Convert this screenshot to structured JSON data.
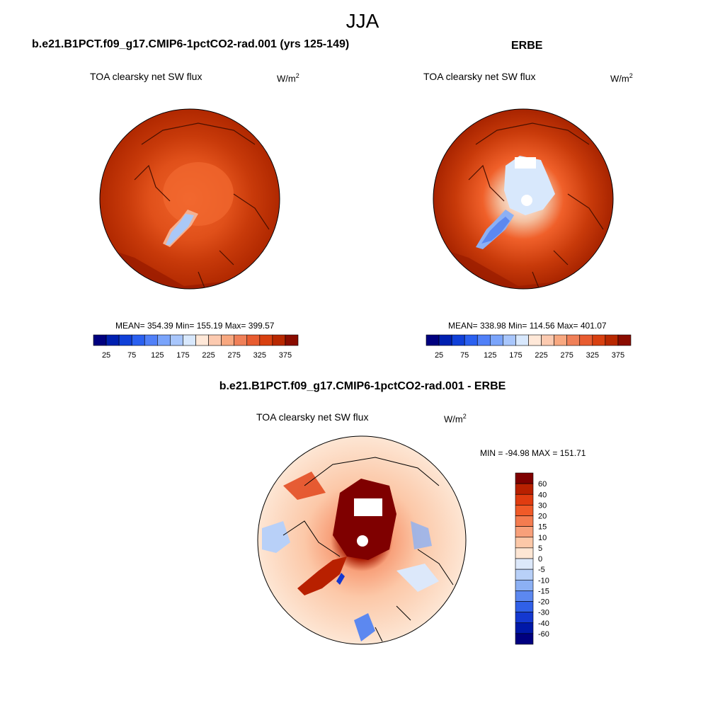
{
  "title": "JJA",
  "panels": [
    {
      "header": "b.e21.B1PCT.f09_g17.CMIP6-1pctCO2-rad.001 (yrs 125-149)",
      "subtitle": "TOA clearsky net SW flux",
      "units": "W/m",
      "units_sup": "2",
      "stats": "MEAN= 354.39  Min= 155.19  Max= 399.57"
    },
    {
      "header": "ERBE",
      "subtitle": "TOA clearsky net SW flux",
      "units": "W/m",
      "units_sup": "2",
      "stats": "MEAN= 338.98  Min= 114.56  Max= 401.07"
    },
    {
      "header": "b.e21.B1PCT.f09_g17.CMIP6-1pctCO2-rad.001 - ERBE",
      "subtitle": "TOA clearsky net SW flux",
      "units": "W/m",
      "units_sup": "2",
      "stats": "MIN = -94.98 MAX = 151.71"
    }
  ],
  "colorbar_abs": {
    "labels": [
      "25",
      "75",
      "125",
      "175",
      "225",
      "275",
      "325",
      "375"
    ],
    "colors": [
      "#00007f",
      "#0020b0",
      "#1040d8",
      "#2a60f0",
      "#5080f8",
      "#7aa4fb",
      "#a8c6fc",
      "#d8e8fd",
      "#ffe8d8",
      "#fccab0",
      "#f8a880",
      "#f08058",
      "#e85c30",
      "#d84010",
      "#b82800",
      "#8a0c00"
    ]
  },
  "colorbar_diff": {
    "labels": [
      "60",
      "40",
      "30",
      "20",
      "15",
      "10",
      "5",
      "0",
      "-5",
      "-10",
      "-15",
      "-20",
      "-30",
      "-40",
      "-60"
    ],
    "colors": [
      "#7f0000",
      "#b82000",
      "#e03c10",
      "#f05a28",
      "#f47c50",
      "#f8a07a",
      "#fcc8a8",
      "#fde6d4",
      "#dce8fa",
      "#b8d0f8",
      "#8cb0f4",
      "#5c88f0",
      "#3060e8",
      "#1438d0",
      "#0018a8",
      "#000080"
    ]
  }
}
